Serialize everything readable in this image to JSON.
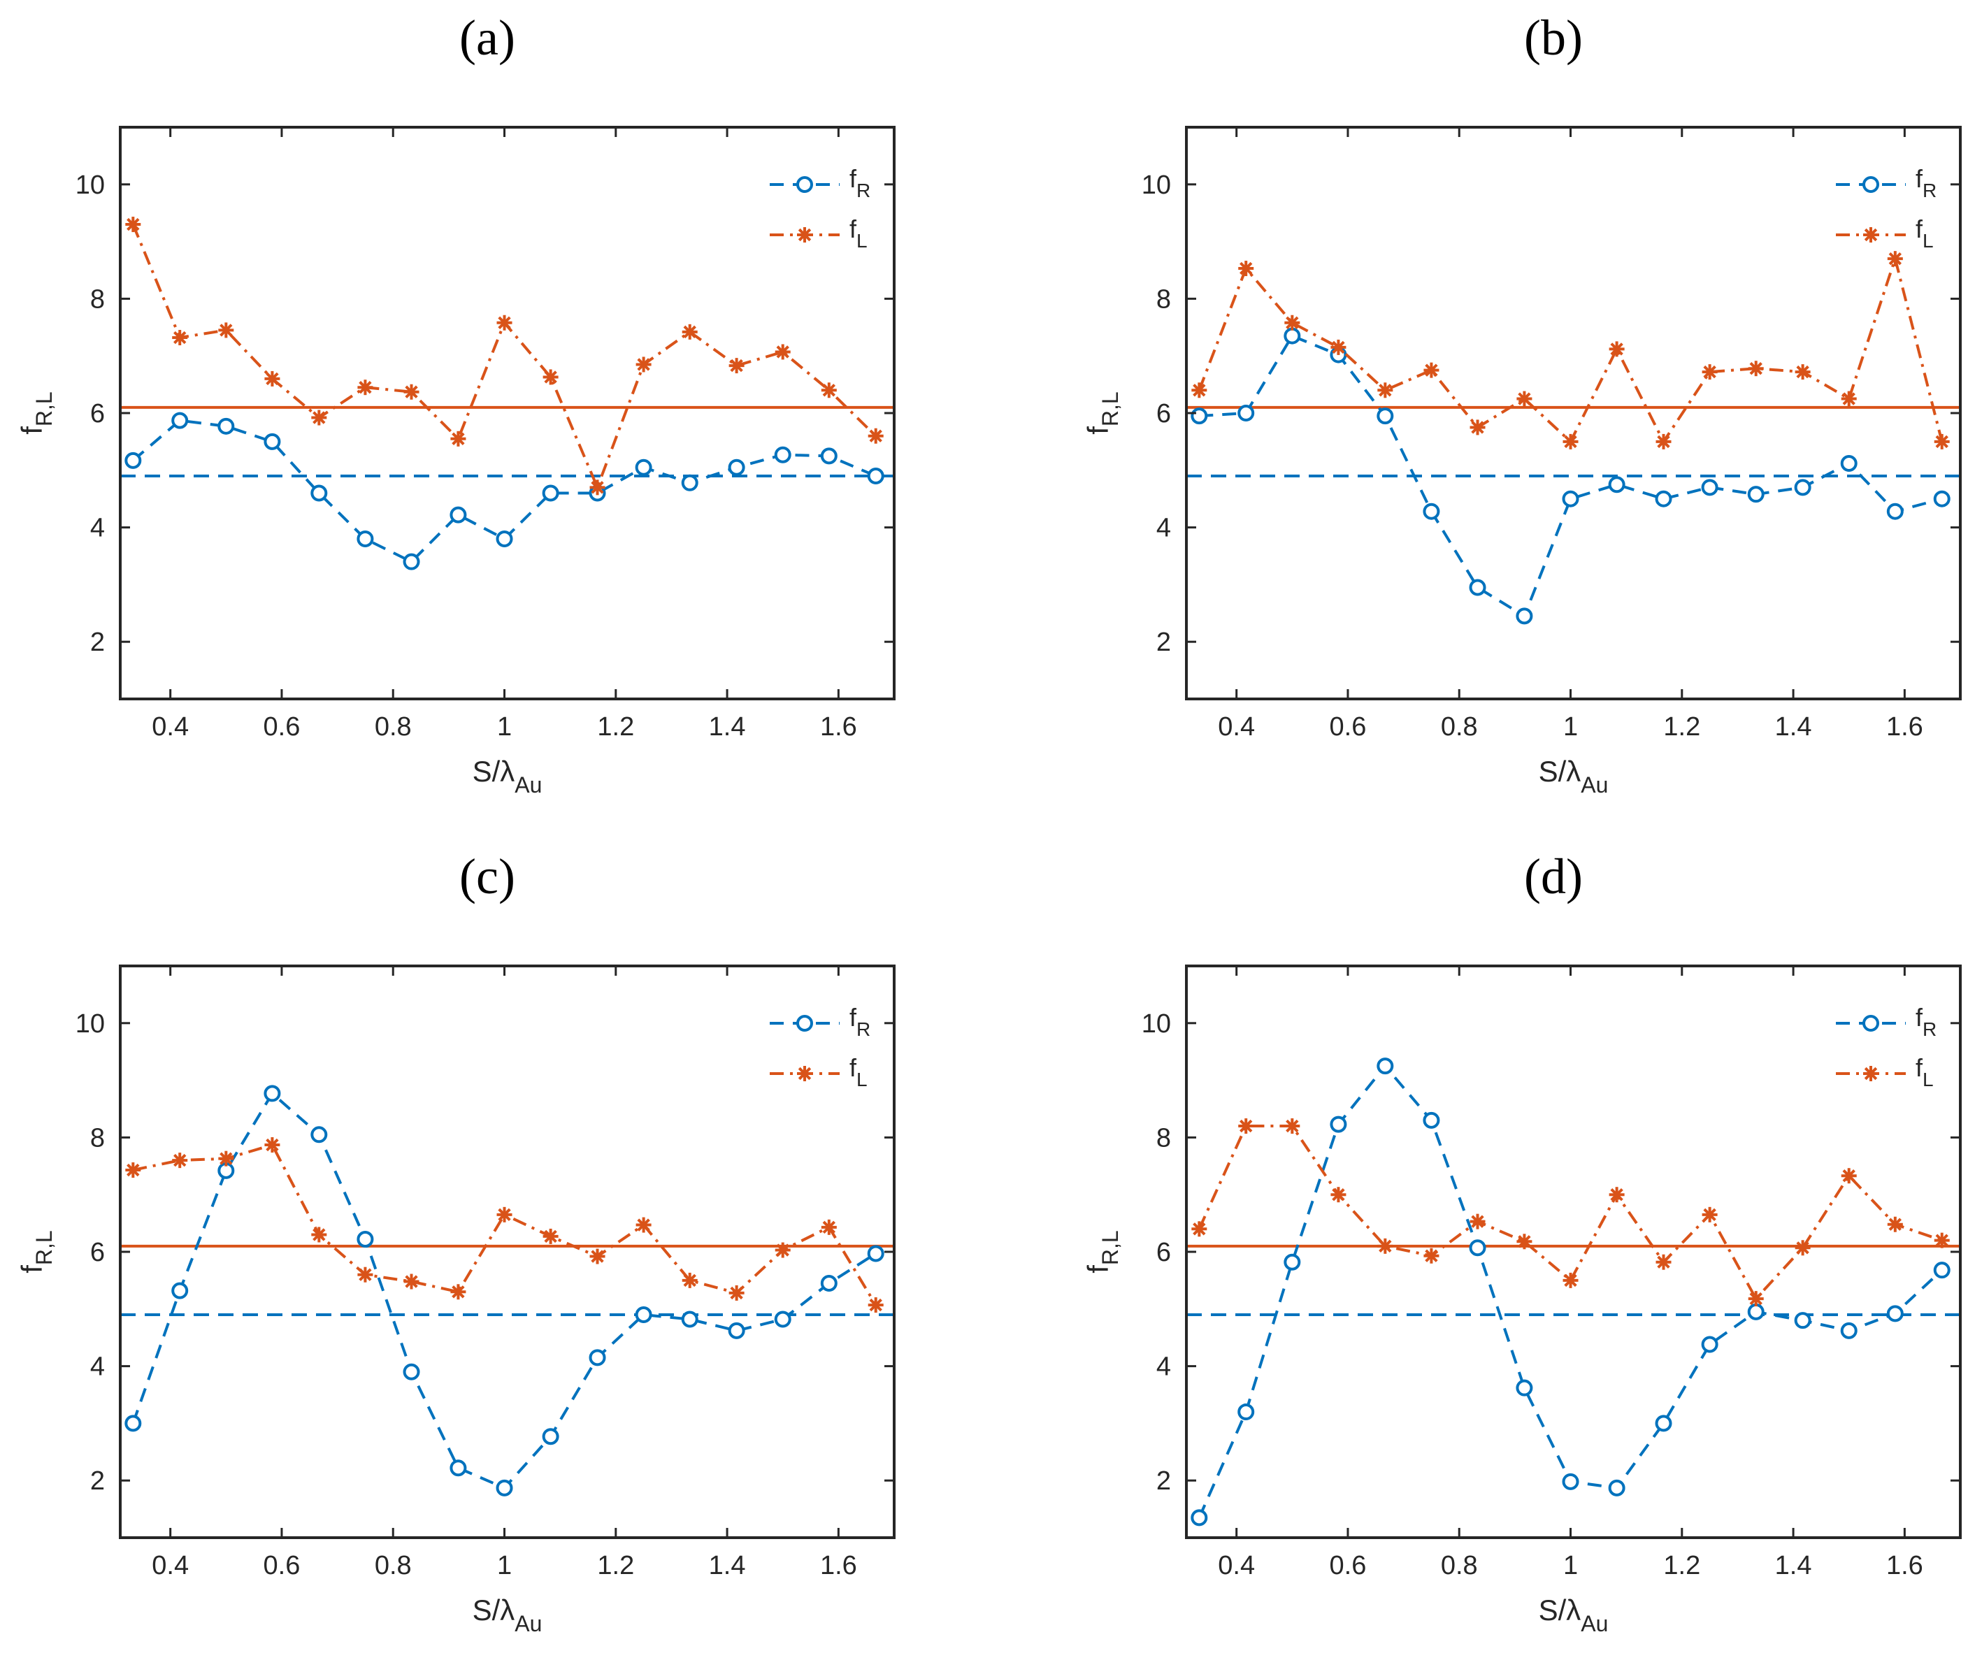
{
  "figure": {
    "colors": {
      "fR": "#0072BD",
      "fL": "#D95319",
      "axis": "#262626"
    }
  },
  "chart_data": [
    {
      "panel": "(a)",
      "type": "line",
      "xlabel": "S/λAu",
      "ylabel": "fR,L",
      "xlim": [
        0.31,
        1.7
      ],
      "ylim": [
        1,
        11
      ],
      "xticks": [
        0.4,
        0.6,
        0.8,
        1,
        1.2,
        1.4,
        1.6
      ],
      "yticks": [
        2,
        4,
        6,
        8,
        10
      ],
      "legend_position": "top-right",
      "x": [
        0.333,
        0.417,
        0.5,
        0.583,
        0.667,
        0.75,
        0.833,
        0.917,
        1.0,
        1.083,
        1.167,
        1.25,
        1.333,
        1.417,
        1.5,
        1.583,
        1.667
      ],
      "series": [
        {
          "name": "fR",
          "name_main": "f",
          "name_sub": "R",
          "style": "dashed-circle",
          "values": [
            5.17,
            5.87,
            5.77,
            5.5,
            4.6,
            3.8,
            3.4,
            4.22,
            3.8,
            4.6,
            4.6,
            5.05,
            4.78,
            5.05,
            5.27,
            5.25,
            4.9
          ]
        },
        {
          "name": "fL",
          "name_main": "f",
          "name_sub": "L",
          "style": "dashdot-star",
          "values": [
            9.3,
            7.32,
            7.45,
            6.6,
            5.92,
            6.45,
            6.37,
            5.55,
            7.58,
            6.63,
            4.7,
            6.85,
            7.42,
            6.83,
            7.07,
            6.4,
            5.6
          ]
        }
      ],
      "reference_lines": [
        {
          "series": "fR",
          "y": 4.9,
          "style": "dashed"
        },
        {
          "series": "fL",
          "y": 6.1,
          "style": "solid"
        }
      ]
    },
    {
      "panel": "(b)",
      "type": "line",
      "xlabel": "S/λAu",
      "ylabel": "fR,L",
      "xlim": [
        0.31,
        1.7
      ],
      "ylim": [
        1,
        11
      ],
      "xticks": [
        0.4,
        0.6,
        0.8,
        1,
        1.2,
        1.4,
        1.6
      ],
      "yticks": [
        2,
        4,
        6,
        8,
        10
      ],
      "legend_position": "top-right",
      "x": [
        0.333,
        0.417,
        0.5,
        0.583,
        0.667,
        0.75,
        0.833,
        0.917,
        1.0,
        1.083,
        1.167,
        1.25,
        1.333,
        1.417,
        1.5,
        1.583,
        1.667
      ],
      "series": [
        {
          "name": "fR",
          "name_main": "f",
          "name_sub": "R",
          "style": "dashed-circle",
          "values": [
            5.95,
            6.0,
            7.35,
            7.02,
            5.95,
            4.28,
            2.95,
            2.45,
            4.5,
            4.75,
            4.5,
            4.7,
            4.58,
            4.7,
            5.12,
            4.28,
            4.5
          ]
        },
        {
          "name": "fL",
          "name_main": "f",
          "name_sub": "L",
          "style": "dashdot-star",
          "values": [
            6.4,
            8.53,
            7.58,
            7.15,
            6.4,
            6.75,
            5.75,
            6.25,
            5.5,
            7.12,
            5.5,
            6.72,
            6.78,
            6.72,
            6.25,
            8.7,
            5.5
          ]
        }
      ],
      "reference_lines": [
        {
          "series": "fR",
          "y": 4.9,
          "style": "dashed"
        },
        {
          "series": "fL",
          "y": 6.1,
          "style": "solid"
        }
      ]
    },
    {
      "panel": "(c)",
      "type": "line",
      "xlabel": "S/λAu",
      "ylabel": "fR,L",
      "xlim": [
        0.31,
        1.7
      ],
      "ylim": [
        1,
        11
      ],
      "xticks": [
        0.4,
        0.6,
        0.8,
        1,
        1.2,
        1.4,
        1.6
      ],
      "yticks": [
        2,
        4,
        6,
        8,
        10
      ],
      "legend_position": "top-right",
      "x": [
        0.333,
        0.417,
        0.5,
        0.583,
        0.667,
        0.75,
        0.833,
        0.917,
        1.0,
        1.083,
        1.167,
        1.25,
        1.333,
        1.417,
        1.5,
        1.583,
        1.667
      ],
      "series": [
        {
          "name": "fR",
          "name_main": "f",
          "name_sub": "R",
          "style": "dashed-circle",
          "values": [
            3.0,
            5.32,
            7.42,
            8.77,
            8.05,
            6.22,
            3.9,
            2.22,
            1.87,
            2.77,
            4.15,
            4.9,
            4.82,
            4.62,
            4.82,
            5.45,
            5.97
          ]
        },
        {
          "name": "fL",
          "name_main": "f",
          "name_sub": "L",
          "style": "dashdot-star",
          "values": [
            7.43,
            7.6,
            7.63,
            7.87,
            6.3,
            5.6,
            5.48,
            5.3,
            6.65,
            6.27,
            5.92,
            6.47,
            5.5,
            5.28,
            6.03,
            6.43,
            5.07
          ]
        }
      ],
      "reference_lines": [
        {
          "series": "fR",
          "y": 4.9,
          "style": "dashed"
        },
        {
          "series": "fL",
          "y": 6.1,
          "style": "solid"
        }
      ]
    },
    {
      "panel": "(d)",
      "type": "line",
      "xlabel": "S/λAu",
      "ylabel": "fR,L",
      "xlim": [
        0.31,
        1.7
      ],
      "ylim": [
        1,
        11
      ],
      "xticks": [
        0.4,
        0.6,
        0.8,
        1,
        1.2,
        1.4,
        1.6
      ],
      "yticks": [
        2,
        4,
        6,
        8,
        10
      ],
      "legend_position": "top-right",
      "x": [
        0.333,
        0.417,
        0.5,
        0.583,
        0.667,
        0.75,
        0.833,
        0.917,
        1.0,
        1.083,
        1.167,
        1.25,
        1.333,
        1.417,
        1.5,
        1.583,
        1.667
      ],
      "series": [
        {
          "name": "fR",
          "name_main": "f",
          "name_sub": "R",
          "style": "dashed-circle",
          "values": [
            1.35,
            3.2,
            5.82,
            8.23,
            9.25,
            8.3,
            6.07,
            3.62,
            1.98,
            1.87,
            3.0,
            4.38,
            4.95,
            4.8,
            4.62,
            4.92,
            5.68
          ]
        },
        {
          "name": "fL",
          "name_main": "f",
          "name_sub": "L",
          "style": "dashdot-star",
          "values": [
            6.4,
            8.2,
            8.2,
            7.0,
            6.1,
            5.93,
            6.53,
            6.18,
            5.5,
            7.0,
            5.82,
            6.65,
            5.18,
            6.07,
            7.33,
            6.48,
            6.2
          ]
        }
      ],
      "reference_lines": [
        {
          "series": "fR",
          "y": 4.9,
          "style": "dashed"
        },
        {
          "series": "fL",
          "y": 6.1,
          "style": "solid"
        }
      ]
    }
  ]
}
